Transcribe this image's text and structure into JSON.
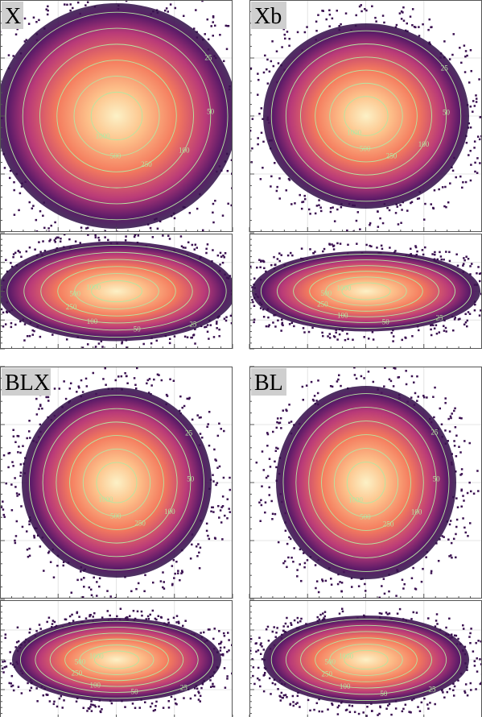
{
  "chart_data": [
    {
      "type": "density",
      "title": "X",
      "contour_levels": [
        25,
        50,
        100,
        250,
        500,
        1000
      ]
    },
    {
      "type": "density",
      "title": "Xb",
      "contour_levels": [
        25,
        50,
        100,
        250,
        500,
        1000
      ]
    },
    {
      "type": "density",
      "title": "BLX",
      "contour_levels": [
        25,
        50,
        100,
        250,
        500,
        1000
      ]
    },
    {
      "type": "density",
      "title": "BL",
      "contour_levels": [
        25,
        50,
        100,
        250,
        500,
        1000
      ]
    }
  ]
}
